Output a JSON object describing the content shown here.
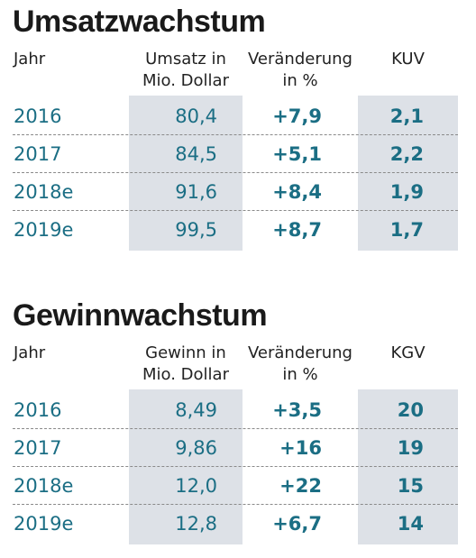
{
  "chart_data": [
    {
      "type": "table",
      "title": "Umsatzwachstum",
      "columns": [
        "Jahr",
        "Umsatz in Mio. Dollar",
        "Veränderung in %",
        "KUV"
      ],
      "header": {
        "jahr": "Jahr",
        "c1_line1": "Umsatz in",
        "c1_line2": "Mio. Dollar",
        "c2_line1": "Veränderung",
        "c2_line2": "in %",
        "c3": "KUV"
      },
      "rows": [
        {
          "year": "2016",
          "value": "80,4",
          "change": "+7,9",
          "ratio": "2,1"
        },
        {
          "year": "2017",
          "value": "84,5",
          "change": "+5,1",
          "ratio": "2,2"
        },
        {
          "year": "2018e",
          "value": "91,6",
          "change": "+8,4",
          "ratio": "1,9"
        },
        {
          "year": "2019e",
          "value": "99,5",
          "change": "+8,7",
          "ratio": "1,7"
        }
      ]
    },
    {
      "type": "table",
      "title": "Gewinnwachstum",
      "columns": [
        "Jahr",
        "Gewinn in Mio. Dollar",
        "Veränderung in %",
        "KGV"
      ],
      "header": {
        "jahr": "Jahr",
        "c1_line1": "Gewinn in",
        "c1_line2": "Mio. Dollar",
        "c2_line1": "Veränderung",
        "c2_line2": "in %",
        "c3": "KGV"
      },
      "rows": [
        {
          "year": "2016",
          "value": "8,49",
          "change": "+3,5",
          "ratio": "20"
        },
        {
          "year": "2017",
          "value": "9,86",
          "change": "+16",
          "ratio": "19"
        },
        {
          "year": "2018e",
          "value": "12,0",
          "change": "+22",
          "ratio": "15"
        },
        {
          "year": "2019e",
          "value": "12,8",
          "change": "+6,7",
          "ratio": "14"
        }
      ]
    }
  ],
  "colors": {
    "value_text": "#1b6e84",
    "shaded_column": "#dde1e7",
    "title_text": "#1a1a1a"
  }
}
